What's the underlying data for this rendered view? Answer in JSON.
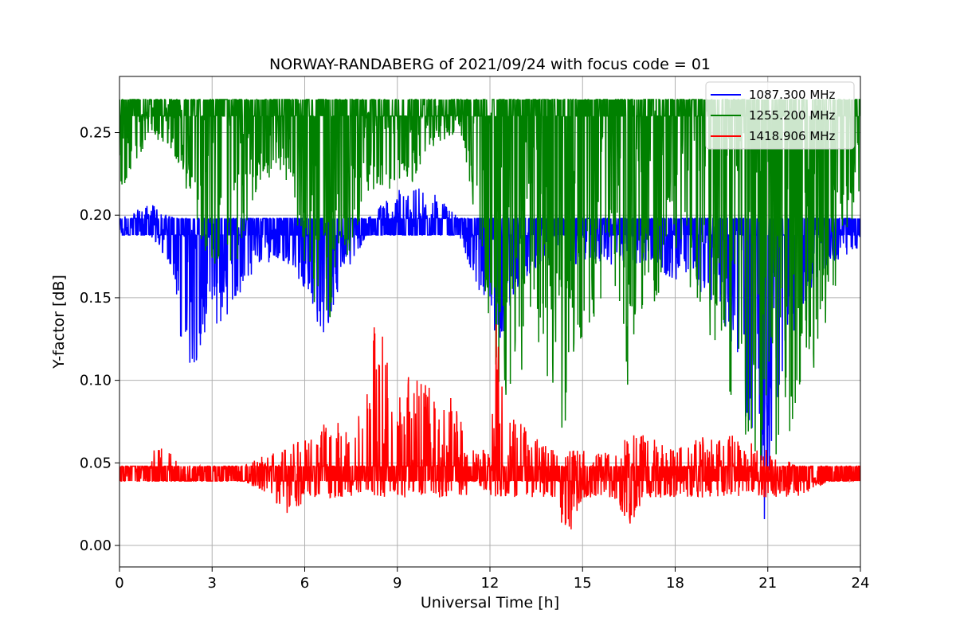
{
  "chart_data": {
    "type": "line",
    "title": "NORWAY-RANDABERG of 2021/09/24 with focus code = 01",
    "xlabel": "Universal Time [h]",
    "ylabel": "Y-factor [dB]",
    "xlim": [
      0,
      24
    ],
    "ylim": [
      -0.013,
      0.284
    ],
    "xticks": [
      0,
      3,
      6,
      9,
      12,
      15,
      18,
      21,
      24
    ],
    "yticks": [
      0.0,
      0.05,
      0.1,
      0.15,
      0.2,
      0.25
    ],
    "ytick_labels": [
      "0.00",
      "0.05",
      "0.10",
      "0.15",
      "0.20",
      "0.25"
    ],
    "grid": true,
    "legend_position": "top-right",
    "series": [
      {
        "name": "1087.300 MHz",
        "color": "#0000ff",
        "baseline": [
          0.188,
          0.198
        ],
        "x": [
          0,
          1,
          1.8,
          2.0,
          2.3,
          2.8,
          3.2,
          3.8,
          4.5,
          5.0,
          5.5,
          6.2,
          6.6,
          7.0,
          8.0,
          8.5,
          9.0,
          10.0,
          11.0,
          11.5,
          12.0,
          12.3,
          13.0,
          14.0,
          15.0,
          16.0,
          17.0,
          18.0,
          18.5,
          19.0,
          19.5,
          19.8,
          20.2,
          20.7,
          20.9,
          21.2,
          22.0,
          23.0,
          24.0
        ],
        "low": [
          0.188,
          0.188,
          0.16,
          0.12,
          0.1,
          0.13,
          0.13,
          0.15,
          0.17,
          0.17,
          0.17,
          0.15,
          0.12,
          0.15,
          0.188,
          0.188,
          0.188,
          0.188,
          0.188,
          0.16,
          0.14,
          0.12,
          0.16,
          0.17,
          0.17,
          0.17,
          0.17,
          0.16,
          0.16,
          0.15,
          0.14,
          0.12,
          0.08,
          0.06,
          0.0,
          0.08,
          0.14,
          0.17,
          0.18
        ],
        "high": [
          0.198,
          0.207,
          0.198,
          0.198,
          0.198,
          0.198,
          0.198,
          0.198,
          0.198,
          0.198,
          0.198,
          0.198,
          0.198,
          0.198,
          0.198,
          0.207,
          0.217,
          0.217,
          0.198,
          0.198,
          0.198,
          0.198,
          0.198,
          0.198,
          0.198,
          0.198,
          0.198,
          0.198,
          0.198,
          0.198,
          0.198,
          0.198,
          0.198,
          0.198,
          0.198,
          0.198,
          0.198,
          0.198,
          0.198
        ]
      },
      {
        "name": "1255.200 MHz",
        "color": "#008000",
        "baseline": [
          0.26,
          0.27
        ],
        "x": [
          0,
          1,
          2.0,
          2.3,
          2.8,
          3.4,
          3.9,
          4.5,
          5.5,
          6.2,
          6.6,
          7.0,
          8.0,
          9.5,
          10.0,
          11.0,
          11.5,
          12.0,
          12.5,
          13.0,
          13.5,
          14.0,
          14.5,
          15.0,
          16.0,
          16.5,
          17.0,
          18.0,
          18.8,
          19.5,
          20.0,
          20.5,
          21.0,
          21.5,
          22.0,
          22.5,
          23.0,
          23.5,
          24.0
        ],
        "low": [
          0.21,
          0.25,
          0.23,
          0.2,
          0.17,
          0.15,
          0.17,
          0.22,
          0.22,
          0.15,
          0.12,
          0.15,
          0.21,
          0.22,
          0.24,
          0.25,
          0.2,
          0.12,
          0.08,
          0.1,
          0.09,
          0.08,
          0.06,
          0.13,
          0.15,
          0.08,
          0.13,
          0.18,
          0.14,
          0.1,
          0.08,
          0.05,
          0.04,
          0.06,
          0.08,
          0.1,
          0.14,
          0.18,
          0.21
        ],
        "high": [
          0.27,
          0.27,
          0.27,
          0.27,
          0.27,
          0.27,
          0.27,
          0.27,
          0.27,
          0.27,
          0.27,
          0.27,
          0.27,
          0.27,
          0.27,
          0.27,
          0.27,
          0.27,
          0.27,
          0.27,
          0.27,
          0.27,
          0.27,
          0.27,
          0.27,
          0.27,
          0.27,
          0.27,
          0.27,
          0.27,
          0.27,
          0.27,
          0.27,
          0.27,
          0.27,
          0.27,
          0.27,
          0.27,
          0.27
        ]
      },
      {
        "name": "1418.906 MHz",
        "color": "#ff0000",
        "baseline": [
          0.039,
          0.048
        ],
        "x": [
          0,
          1,
          1.2,
          2.0,
          3.0,
          4.0,
          5.0,
          5.4,
          6.0,
          7.0,
          7.5,
          8.0,
          8.2,
          9.0,
          9.5,
          10.0,
          11.0,
          11.2,
          11.5,
          12.0,
          12.2,
          12.5,
          13.0,
          13.5,
          14.0,
          14.5,
          15.0,
          16.0,
          16.5,
          17.0,
          18.0,
          19.0,
          20.0,
          21.0,
          22.0,
          23.0,
          24.0
        ],
        "low": [
          0.039,
          0.039,
          0.039,
          0.039,
          0.039,
          0.039,
          0.029,
          0.01,
          0.029,
          0.029,
          0.029,
          0.029,
          0.029,
          0.029,
          0.029,
          0.029,
          0.029,
          0.029,
          0.039,
          0.029,
          0.029,
          0.029,
          0.029,
          0.029,
          0.029,
          0.0,
          0.029,
          0.029,
          0.01,
          0.029,
          0.029,
          0.029,
          0.029,
          0.029,
          0.029,
          0.039,
          0.039
        ],
        "high": [
          0.048,
          0.048,
          0.067,
          0.048,
          0.048,
          0.048,
          0.058,
          0.058,
          0.067,
          0.077,
          0.067,
          0.097,
          0.154,
          0.097,
          0.106,
          0.097,
          0.087,
          0.058,
          0.058,
          0.058,
          0.135,
          0.077,
          0.077,
          0.067,
          0.058,
          0.058,
          0.058,
          0.058,
          0.067,
          0.067,
          0.058,
          0.067,
          0.067,
          0.058,
          0.048,
          0.048,
          0.048
        ]
      }
    ]
  }
}
